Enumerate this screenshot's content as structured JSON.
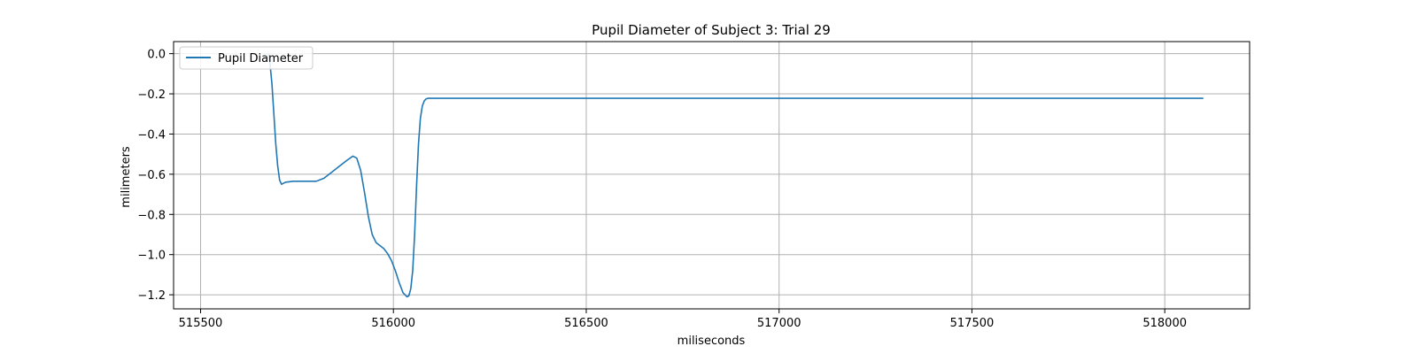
{
  "chart_data": {
    "type": "line",
    "title": "Pupil Diameter of Subject 3: Trial 29",
    "xlabel": "miliseconds",
    "ylabel": "milimeters",
    "xlim": [
      515430,
      518220
    ],
    "ylim": [
      -1.27,
      0.06
    ],
    "xticks": [
      515500,
      516000,
      516500,
      517000,
      517500,
      518000
    ],
    "yticks": [
      0.0,
      -0.2,
      -0.4,
      -0.6,
      -0.8,
      -1.0,
      -1.2
    ],
    "ytick_labels": [
      "0.0",
      "−0.2",
      "−0.4",
      "−0.6",
      "−0.8",
      "−1.0",
      "−1.2"
    ],
    "grid": true,
    "legend_position": "top-left",
    "colors": {
      "line": "#1f77b4",
      "grid": "#b0b0b0"
    },
    "series": [
      {
        "name": "Pupil Diameter",
        "x": [
          515675,
          515680,
          515685,
          515690,
          515695,
          515700,
          515705,
          515710,
          515720,
          515740,
          515770,
          515800,
          515820,
          515840,
          515860,
          515880,
          515895,
          515905,
          515915,
          515925,
          515935,
          515945,
          515955,
          515965,
          515975,
          515985,
          515995,
          516005,
          516015,
          516025,
          516035,
          516040,
          516045,
          516050,
          516055,
          516060,
          516065,
          516070,
          516075,
          516080,
          516085,
          516090,
          516100,
          516150,
          516500,
          517000,
          517500,
          518000,
          518100
        ],
        "y": [
          0.0,
          -0.05,
          -0.15,
          -0.3,
          -0.45,
          -0.56,
          -0.63,
          -0.65,
          -0.64,
          -0.635,
          -0.635,
          -0.635,
          -0.62,
          -0.59,
          -0.56,
          -0.53,
          -0.51,
          -0.52,
          -0.58,
          -0.69,
          -0.81,
          -0.9,
          -0.94,
          -0.955,
          -0.97,
          -0.995,
          -1.03,
          -1.08,
          -1.14,
          -1.19,
          -1.21,
          -1.205,
          -1.17,
          -1.08,
          -0.9,
          -0.66,
          -0.45,
          -0.32,
          -0.26,
          -0.235,
          -0.225,
          -0.222,
          -0.222,
          -0.222,
          -0.222,
          -0.222,
          -0.222,
          -0.222,
          -0.222
        ]
      }
    ]
  }
}
